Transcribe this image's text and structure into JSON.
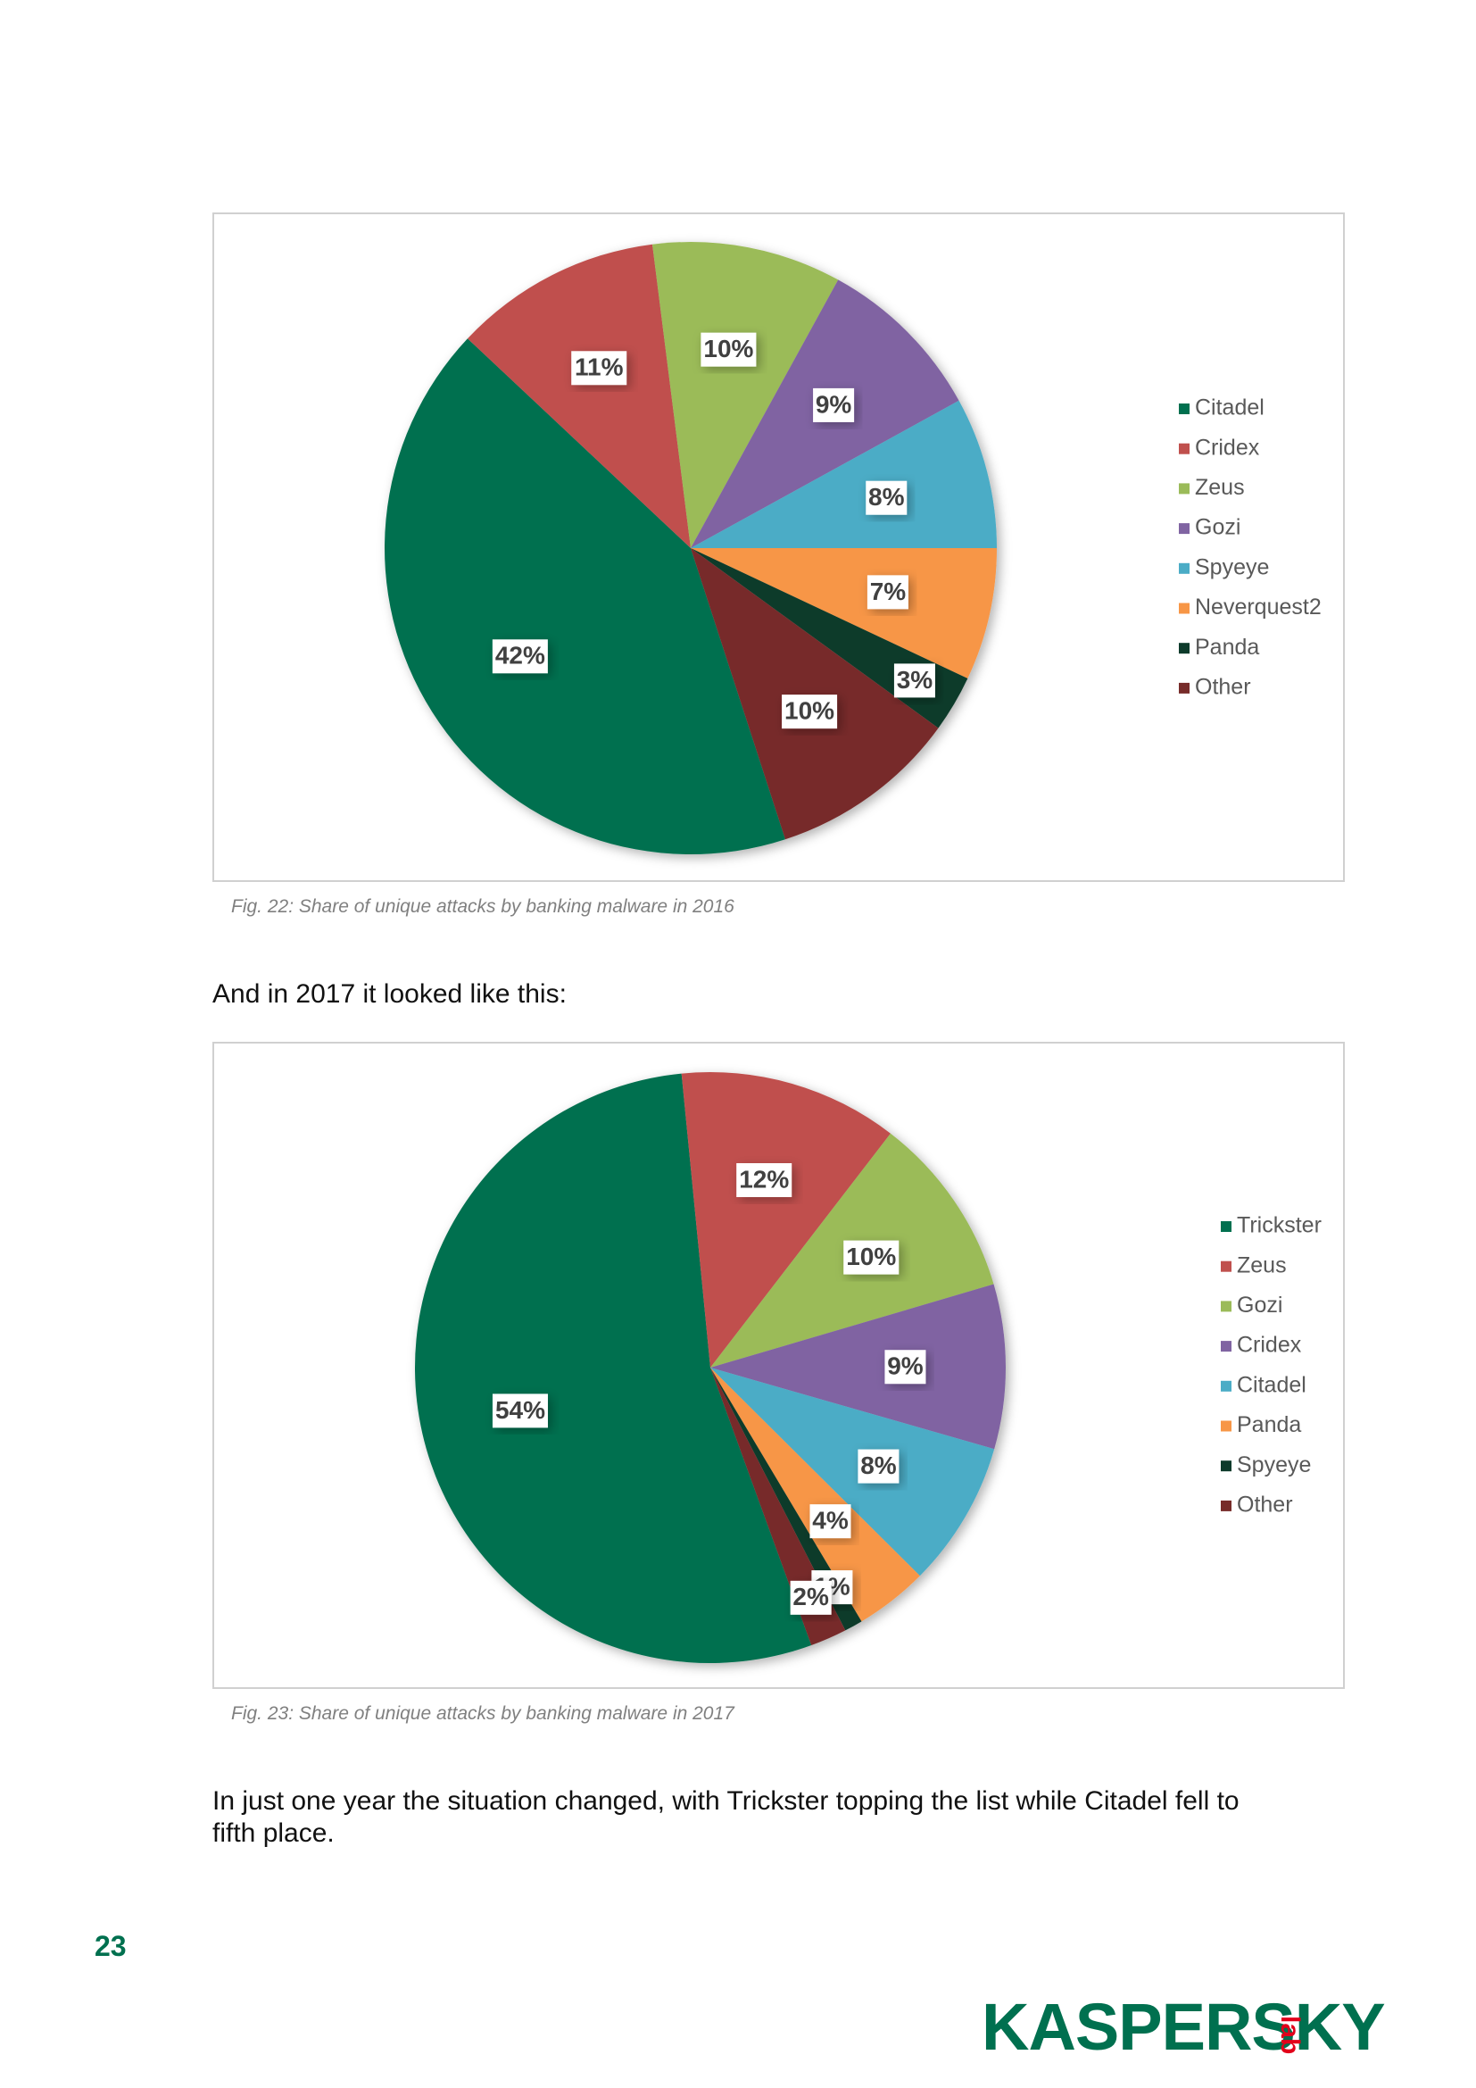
{
  "chart_data": [
    {
      "type": "pie",
      "categories": [
        "Citadel",
        "Cridex",
        "Zeus",
        "Gozi",
        "Spyeye",
        "Neverquest2",
        "Panda",
        "Other"
      ],
      "values": [
        42,
        11,
        10,
        9,
        8,
        7,
        3,
        10
      ],
      "value_labels": [
        "42%",
        "11%",
        "10%",
        "9%",
        "8%",
        "7%",
        "3%",
        "10%"
      ],
      "colors": [
        "#00704f",
        "#c0504d",
        "#9bbb59",
        "#8064a2",
        "#4bacc6",
        "#f79646",
        "#0d3b2b",
        "#772c2a"
      ],
      "caption": "Fig. 22: Share of unique attacks by banking malware in 2016"
    },
    {
      "type": "pie",
      "categories": [
        "Trickster",
        "Zeus",
        "Gozi",
        "Cridex",
        "Citadel",
        "Panda",
        "Spyeye",
        "Other"
      ],
      "values": [
        54,
        12,
        10,
        9,
        8,
        4,
        1,
        2
      ],
      "value_labels": [
        "54%",
        "12%",
        "10%",
        "9%",
        "8%",
        "4%",
        "1%",
        "2%"
      ],
      "colors": [
        "#00704f",
        "#c0504d",
        "#9bbb59",
        "#8064a2",
        "#4bacc6",
        "#f79646",
        "#0d3b2b",
        "#772c2a"
      ],
      "caption": "Fig. 23: Share of unique attacks by banking malware in 2017"
    }
  ],
  "intro": "And in 2017 it looked like this:",
  "conclusion": "In just one year the situation changed, with Trickster topping the list while Citadel fell to fifth place.",
  "page_number": "23",
  "logo": {
    "name": "KASPERSKY",
    "suffix": "lab"
  }
}
